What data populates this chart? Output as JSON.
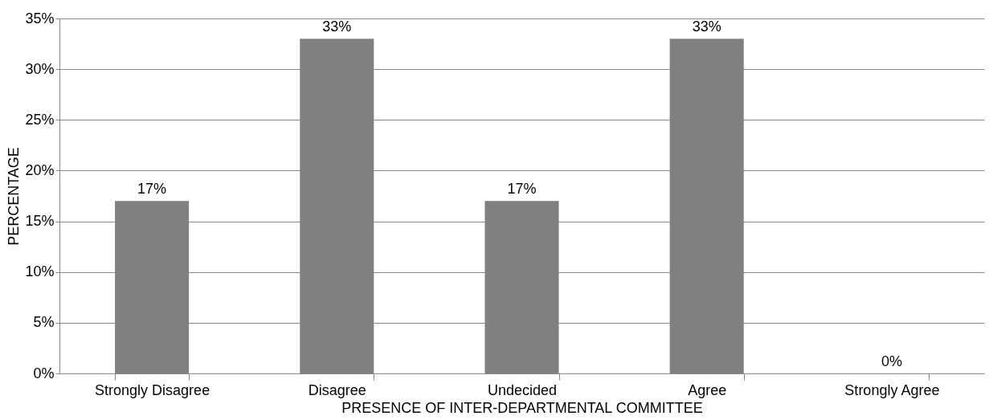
{
  "chart_data": {
    "type": "bar",
    "xlabel": "PRESENCE OF INTER-DEPARTMENTAL COMMITTEE",
    "ylabel": "PERCENTAGE",
    "categories": [
      "Strongly Disagree",
      "Disagree",
      "Undecided",
      "Agree",
      "Strongly Agree"
    ],
    "values": [
      17,
      33,
      17,
      33,
      0
    ],
    "value_labels": [
      "17%",
      "33%",
      "17%",
      "33%",
      "0%"
    ],
    "color": "#808080",
    "ylim": [
      0,
      35
    ],
    "yticks": [
      {
        "value": 0,
        "label": "0%"
      },
      {
        "value": 5,
        "label": "5%"
      },
      {
        "value": 10,
        "label": "10%"
      },
      {
        "value": 15,
        "label": "15%"
      },
      {
        "value": 20,
        "label": "20%"
      },
      {
        "value": 25,
        "label": "25%"
      },
      {
        "value": 30,
        "label": "30%"
      },
      {
        "value": 35,
        "label": "35%"
      }
    ],
    "grid": "y"
  }
}
